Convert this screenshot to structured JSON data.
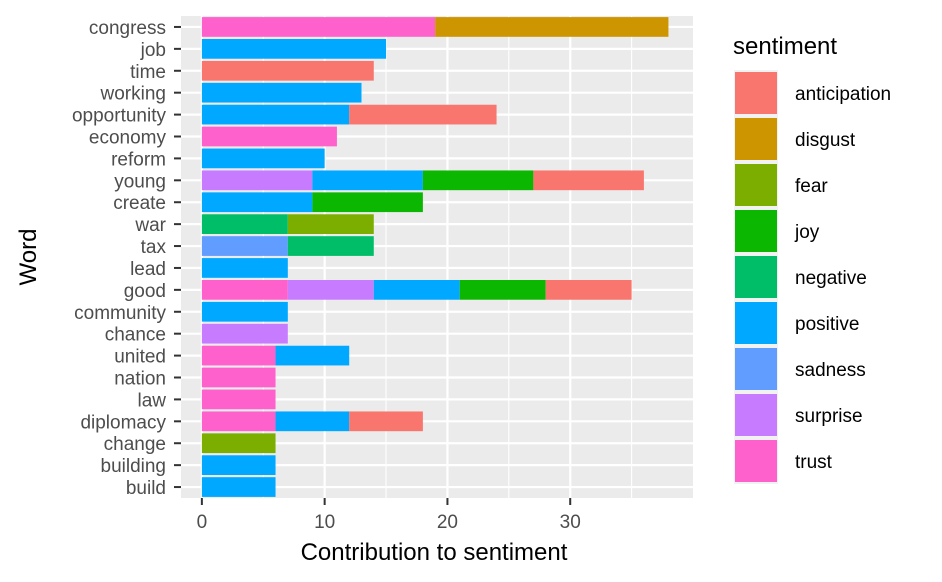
{
  "chart_data": {
    "type": "bar",
    "orientation": "horizontal",
    "stacked": true,
    "xlabel": "Contribution to sentiment",
    "ylabel": "Word",
    "xlim": [
      -1.7,
      40
    ],
    "x_ticks": [
      0,
      10,
      20,
      30
    ],
    "grid": true,
    "legend_position": "right",
    "legend_title": "sentiment",
    "categories": [
      "congress",
      "job",
      "time",
      "working",
      "opportunity",
      "economy",
      "reform",
      "young",
      "create",
      "war",
      "tax",
      "lead",
      "good",
      "community",
      "chance",
      "united",
      "nation",
      "law",
      "diplomacy",
      "change",
      "building",
      "build"
    ],
    "sentiments": [
      {
        "name": "anticipation",
        "color": "#F8766D"
      },
      {
        "name": "disgust",
        "color": "#CD9600"
      },
      {
        "name": "fear",
        "color": "#7CAE00"
      },
      {
        "name": "joy",
        "color": "#0CB702"
      },
      {
        "name": "negative",
        "color": "#00BE67"
      },
      {
        "name": "positive",
        "color": "#00A9FF"
      },
      {
        "name": "sadness",
        "color": "#619CFF"
      },
      {
        "name": "surprise",
        "color": "#C77CFF"
      },
      {
        "name": "trust",
        "color": "#FF61CC"
      }
    ],
    "bars": [
      {
        "word": "congress",
        "segments": [
          {
            "sentiment": "trust",
            "value": 19
          },
          {
            "sentiment": "disgust",
            "value": 19
          }
        ]
      },
      {
        "word": "job",
        "segments": [
          {
            "sentiment": "positive",
            "value": 15
          }
        ]
      },
      {
        "word": "time",
        "segments": [
          {
            "sentiment": "anticipation",
            "value": 14
          }
        ]
      },
      {
        "word": "working",
        "segments": [
          {
            "sentiment": "positive",
            "value": 13
          }
        ]
      },
      {
        "word": "opportunity",
        "segments": [
          {
            "sentiment": "positive",
            "value": 12
          },
          {
            "sentiment": "anticipation",
            "value": 12
          }
        ]
      },
      {
        "word": "economy",
        "segments": [
          {
            "sentiment": "trust",
            "value": 11
          }
        ]
      },
      {
        "word": "reform",
        "segments": [
          {
            "sentiment": "positive",
            "value": 10
          }
        ]
      },
      {
        "word": "young",
        "segments": [
          {
            "sentiment": "surprise",
            "value": 9
          },
          {
            "sentiment": "positive",
            "value": 9
          },
          {
            "sentiment": "joy",
            "value": 9
          },
          {
            "sentiment": "anticipation",
            "value": 9
          }
        ]
      },
      {
        "word": "create",
        "segments": [
          {
            "sentiment": "positive",
            "value": 9
          },
          {
            "sentiment": "joy",
            "value": 9
          }
        ]
      },
      {
        "word": "war",
        "segments": [
          {
            "sentiment": "negative",
            "value": 7
          },
          {
            "sentiment": "fear",
            "value": 7
          }
        ]
      },
      {
        "word": "tax",
        "segments": [
          {
            "sentiment": "sadness",
            "value": 7
          },
          {
            "sentiment": "negative",
            "value": 7
          }
        ]
      },
      {
        "word": "lead",
        "segments": [
          {
            "sentiment": "positive",
            "value": 7
          }
        ]
      },
      {
        "word": "good",
        "segments": [
          {
            "sentiment": "trust",
            "value": 7
          },
          {
            "sentiment": "surprise",
            "value": 7
          },
          {
            "sentiment": "positive",
            "value": 7
          },
          {
            "sentiment": "joy",
            "value": 7
          },
          {
            "sentiment": "anticipation",
            "value": 7
          }
        ]
      },
      {
        "word": "community",
        "segments": [
          {
            "sentiment": "positive",
            "value": 7
          }
        ]
      },
      {
        "word": "chance",
        "segments": [
          {
            "sentiment": "surprise",
            "value": 7
          }
        ]
      },
      {
        "word": "united",
        "segments": [
          {
            "sentiment": "trust",
            "value": 6
          },
          {
            "sentiment": "positive",
            "value": 6
          }
        ]
      },
      {
        "word": "nation",
        "segments": [
          {
            "sentiment": "trust",
            "value": 6
          }
        ]
      },
      {
        "word": "law",
        "segments": [
          {
            "sentiment": "trust",
            "value": 6
          }
        ]
      },
      {
        "word": "diplomacy",
        "segments": [
          {
            "sentiment": "trust",
            "value": 6
          },
          {
            "sentiment": "positive",
            "value": 6
          },
          {
            "sentiment": "anticipation",
            "value": 6
          }
        ]
      },
      {
        "word": "change",
        "segments": [
          {
            "sentiment": "fear",
            "value": 6
          }
        ]
      },
      {
        "word": "building",
        "segments": [
          {
            "sentiment": "positive",
            "value": 6
          }
        ]
      },
      {
        "word": "build",
        "segments": [
          {
            "sentiment": "positive",
            "value": 6
          }
        ]
      }
    ]
  }
}
